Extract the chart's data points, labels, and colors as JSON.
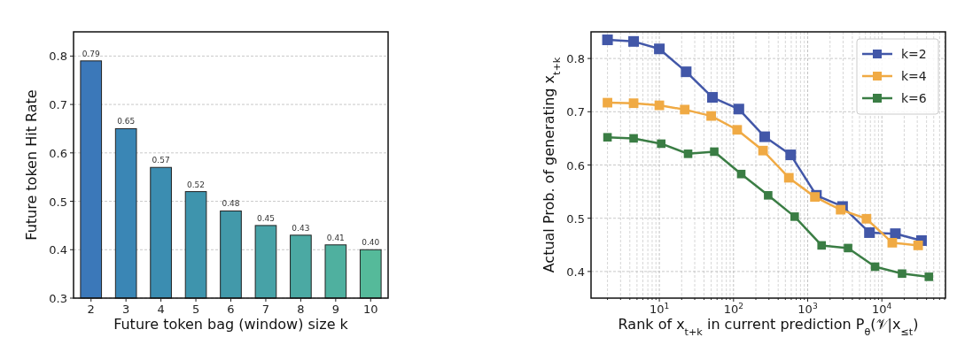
{
  "chart_data": [
    {
      "type": "bar",
      "categories": [
        "2",
        "3",
        "4",
        "5",
        "6",
        "7",
        "8",
        "9",
        "10"
      ],
      "values": [
        0.79,
        0.65,
        0.57,
        0.52,
        0.48,
        0.45,
        0.43,
        0.41,
        0.4
      ],
      "colors": [
        "#3b78b9",
        "#3a86b5",
        "#3b8db1",
        "#3e94ad",
        "#4299aa",
        "#47a2a7",
        "#4ba9a3",
        "#4fb09f",
        "#55ba9a"
      ],
      "xlabel": "Future token bag (window) size k",
      "ylabel": "Future token Hit Rate",
      "ylim": [
        0.3,
        0.85
      ],
      "yticks": [
        0.3,
        0.4,
        0.5,
        0.6,
        0.7,
        0.8
      ],
      "grid": "y",
      "value_labels": [
        "0.79",
        "0.65",
        "0.57",
        "0.52",
        "0.48",
        "0.45",
        "0.43",
        "0.41",
        "0.40"
      ]
    },
    {
      "type": "line",
      "xlabel": "Rank of x$_{t+k}$ in current prediction P$_{θ}$(𝒱|x$_{≤t}$)",
      "ylabel": "Actual Prob. of generating x$_{t+k}$",
      "log": "x",
      "grid": true,
      "legend": "top right",
      "marker": "square",
      "line_style": "solid",
      "xlim": [
        1.2,
        72000
      ],
      "ylim": [
        0.35,
        0.85
      ],
      "yticks": [
        0.4,
        0.5,
        0.6,
        0.7,
        0.8
      ],
      "xticks": [
        {
          "value": 2,
          "label": null
        },
        {
          "value": 3,
          "label": null
        },
        {
          "value": 4,
          "label": null
        },
        {
          "value": 5,
          "label": null
        },
        {
          "value": 6,
          "label": null
        },
        {
          "value": 7,
          "label": null
        },
        {
          "value": 8,
          "label": null
        },
        {
          "value": 9,
          "label": null
        },
        {
          "value": 10,
          "label": "10$^{1}$"
        },
        {
          "value": 20,
          "label": null
        },
        {
          "value": 30,
          "label": null
        },
        {
          "value": 40,
          "label": null
        },
        {
          "value": 50,
          "label": null
        },
        {
          "value": 60,
          "label": null
        },
        {
          "value": 70,
          "label": null
        },
        {
          "value": 80,
          "label": null
        },
        {
          "value": 90,
          "label": null
        },
        {
          "value": 100,
          "label": "10$^{2}$"
        },
        {
          "value": 200,
          "label": null
        },
        {
          "value": 300,
          "label": null
        },
        {
          "value": 400,
          "label": null
        },
        {
          "value": 500,
          "label": null
        },
        {
          "value": 600,
          "label": null
        },
        {
          "value": 700,
          "label": null
        },
        {
          "value": 800,
          "label": null
        },
        {
          "value": 900,
          "label": null
        },
        {
          "value": 1000,
          "label": "10$^{3}$"
        },
        {
          "value": 2000,
          "label": null
        },
        {
          "value": 3000,
          "label": null
        },
        {
          "value": 4000,
          "label": null
        },
        {
          "value": 5000,
          "label": null
        },
        {
          "value": 6000,
          "label": null
        },
        {
          "value": 7000,
          "label": null
        },
        {
          "value": 8000,
          "label": null
        },
        {
          "value": 9000,
          "label": null
        },
        {
          "value": 10000,
          "label": "10$^{4}$"
        },
        {
          "value": 20000,
          "label": null
        },
        {
          "value": 30000,
          "label": null
        },
        {
          "value": 40000,
          "label": null
        },
        {
          "value": 50000,
          "label": null
        },
        {
          "value": 60000,
          "label": null
        },
        {
          "value": 70000,
          "label": null
        }
      ],
      "series": [
        {
          "name": "k=2",
          "color": "#4257a8",
          "x": [
            2,
            4.5,
            10,
            23,
            52,
            118,
            263,
            590,
            1310,
            2950,
            6800,
            15200,
            34200
          ],
          "values": [
            0.835,
            0.832,
            0.818,
            0.775,
            0.727,
            0.705,
            0.653,
            0.619,
            0.543,
            0.522,
            0.473,
            0.471,
            0.458
          ]
        },
        {
          "name": "k=4",
          "color": "#f0aa44",
          "x": [
            2,
            4.5,
            10,
            22,
            50,
            112,
            250,
            557,
            1250,
            2780,
            6200,
            13800,
            30800
          ],
          "values": [
            0.717,
            0.716,
            0.712,
            0.704,
            0.692,
            0.666,
            0.627,
            0.576,
            0.54,
            0.516,
            0.499,
            0.454,
            0.449
          ]
        },
        {
          "name": "k=6",
          "color": "#3a7d44",
          "x": [
            2,
            4.5,
            10.6,
            24.4,
            55,
            127,
            293,
            667,
            1540,
            3500,
            8100,
            18700,
            43000
          ],
          "values": [
            0.652,
            0.65,
            0.64,
            0.621,
            0.625,
            0.583,
            0.543,
            0.503,
            0.449,
            0.444,
            0.409,
            0.396,
            0.39
          ]
        }
      ]
    }
  ]
}
